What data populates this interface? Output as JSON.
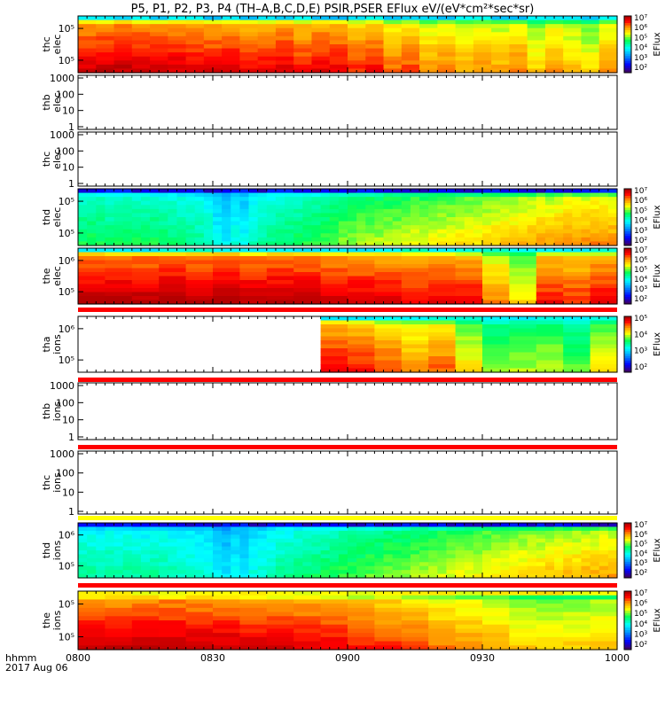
{
  "title": "P5, P1, P2, P3, P4 (TH–A,B,C,D,E) PSIR,PSER EFlux eV/(eV*cm²*sec*sr)",
  "footer": {
    "time_label": "hhmm",
    "date_label": "2017 Aug 06"
  },
  "colorbar_label": "EFlux",
  "chart_data": {
    "type": "heatmap",
    "x_ticks": [
      "0800",
      "0830",
      "0900",
      "0930",
      "1000"
    ],
    "x_range": [
      "0800",
      "1000"
    ],
    "panels": [
      {
        "id": "thc-elec",
        "ylabel": [
          "thc",
          "elec"
        ],
        "yticks": [
          "10⁵",
          "10⁵"
        ],
        "log_ticks": true,
        "has_data": true,
        "colorbar": [
          "10²",
          "10³",
          "10⁴",
          "10⁵",
          "10⁶",
          "10⁷"
        ],
        "bins": 30,
        "top_band": "cyan-blue",
        "level_profile": [
          0.95,
          0.96,
          0.97,
          0.96,
          0.95,
          0.95,
          0.94,
          0.93,
          0.95,
          0.92,
          0.93,
          0.94,
          0.9,
          0.93,
          0.92,
          0.88,
          0.9,
          0.84,
          0.86,
          0.8,
          0.82,
          0.78,
          0.8,
          0.78,
          0.82,
          0.74,
          0.8,
          0.76,
          0.72,
          0.8
        ]
      },
      {
        "id": "thb-elec",
        "ylabel": [
          "thb",
          "elec"
        ],
        "yticks": [
          "1000",
          "100",
          "10",
          "1"
        ],
        "log_ticks": false,
        "has_data": false
      },
      {
        "id": "thc-elec-2",
        "ylabel": [
          "thc",
          "elec"
        ],
        "yticks": [
          "1000",
          "100",
          "10",
          "1"
        ],
        "log_ticks": false,
        "has_data": false
      },
      {
        "id": "thd-elec",
        "ylabel": [
          "thd",
          "elec"
        ],
        "yticks": [
          "10⁵",
          "10⁵"
        ],
        "log_ticks": true,
        "has_data": true,
        "colorbar": [
          "10²",
          "10³",
          "10⁴",
          "10⁵",
          "10⁶",
          "10⁷"
        ],
        "bins": 60,
        "top_band": "spiky-purple",
        "level_profile": [
          0.55,
          0.56,
          0.55,
          0.54,
          0.55,
          0.56,
          0.55,
          0.54,
          0.55,
          0.54,
          0.53,
          0.52,
          0.52,
          0.5,
          0.48,
          0.42,
          0.4,
          0.44,
          0.42,
          0.48,
          0.5,
          0.52,
          0.53,
          0.54,
          0.55,
          0.56,
          0.57,
          0.58,
          0.6,
          0.62,
          0.63,
          0.64,
          0.64,
          0.65,
          0.66,
          0.66,
          0.67,
          0.68,
          0.68,
          0.69,
          0.7,
          0.7,
          0.71,
          0.72,
          0.72,
          0.73,
          0.74,
          0.75,
          0.75,
          0.76,
          0.77,
          0.78,
          0.78,
          0.79,
          0.8,
          0.8,
          0.8,
          0.81,
          0.8,
          0.8
        ]
      },
      {
        "id": "the-elec",
        "ylabel": [
          "the",
          "elec"
        ],
        "yticks": [
          "10⁶",
          "10⁵"
        ],
        "log_ticks": true,
        "has_data": true,
        "colorbar": [
          "10²",
          "10³",
          "10⁴",
          "10⁵",
          "10⁶",
          "10⁷"
        ],
        "bins": 20,
        "top_band": "cyan",
        "level_profile": [
          0.98,
          0.99,
          0.98,
          0.99,
          0.98,
          0.99,
          0.97,
          0.98,
          0.97,
          0.96,
          0.95,
          0.94,
          0.92,
          0.93,
          0.92,
          0.8,
          0.72,
          0.9,
          0.88,
          0.92
        ]
      },
      {
        "id": "tha-ions",
        "ylabel": [
          "tha",
          "ions"
        ],
        "yticks": [
          "10⁶",
          "10⁵"
        ],
        "log_ticks": true,
        "has_data": true,
        "colorbar": [
          "10²",
          "10³",
          "10⁴",
          "10⁵"
        ],
        "bins": 20,
        "data_start_bin": 9,
        "top_band": "cyan",
        "level_profile": [
          0,
          0,
          0,
          0,
          0,
          0,
          0,
          0,
          0,
          0.92,
          0.9,
          0.86,
          0.8,
          0.84,
          0.72,
          0.62,
          0.64,
          0.66,
          0.6,
          0.7
        ]
      },
      {
        "id": "thb-ions",
        "ylabel": [
          "thb",
          "ions"
        ],
        "yticks": [
          "1000",
          "100",
          "10",
          "1"
        ],
        "log_ticks": false,
        "has_data": false
      },
      {
        "id": "thc-ions",
        "ylabel": [
          "thc",
          "ions"
        ],
        "yticks": [
          "1000",
          "100",
          "10",
          "1"
        ],
        "log_ticks": false,
        "has_data": false
      },
      {
        "id": "thd-ions",
        "ylabel": [
          "thd",
          "ions"
        ],
        "yticks": [
          "10⁶",
          "10⁵"
        ],
        "log_ticks": true,
        "has_data": true,
        "colorbar": [
          "10²",
          "10³",
          "10⁴",
          "10⁵",
          "10⁶",
          "10⁷"
        ],
        "bins": 60,
        "top_band": "spiky-purple",
        "level_profile": [
          0.5,
          0.5,
          0.49,
          0.5,
          0.49,
          0.5,
          0.49,
          0.48,
          0.5,
          0.49,
          0.48,
          0.47,
          0.47,
          0.46,
          0.45,
          0.4,
          0.38,
          0.42,
          0.4,
          0.44,
          0.46,
          0.48,
          0.5,
          0.51,
          0.52,
          0.53,
          0.54,
          0.55,
          0.56,
          0.57,
          0.58,
          0.59,
          0.6,
          0.61,
          0.62,
          0.62,
          0.63,
          0.64,
          0.65,
          0.65,
          0.66,
          0.67,
          0.68,
          0.68,
          0.69,
          0.7,
          0.71,
          0.72,
          0.72,
          0.73,
          0.74,
          0.74,
          0.75,
          0.75,
          0.76,
          0.76,
          0.77,
          0.77,
          0.78,
          0.78
        ]
      },
      {
        "id": "the-ions",
        "ylabel": [
          "the",
          "ions"
        ],
        "yticks": [
          "10⁵",
          "10⁵"
        ],
        "log_ticks": true,
        "has_data": true,
        "colorbar": [
          "10²",
          "10³",
          "10⁴",
          "10⁵",
          "10⁶",
          "10⁷"
        ],
        "bins": 20,
        "top_band": "yellow",
        "level_profile": [
          0.97,
          0.96,
          0.97,
          0.97,
          0.96,
          0.96,
          0.95,
          0.94,
          0.93,
          0.92,
          0.9,
          0.88,
          0.86,
          0.82,
          0.8,
          0.78,
          0.74,
          0.72,
          0.74,
          0.76
        ]
      }
    ],
    "separator_bars": [
      {
        "after_panel": "the-elec",
        "color": "#ff0000"
      },
      {
        "after_panel": "tha-ions",
        "color": "#ff0000"
      },
      {
        "after_panel": "thb-ions",
        "color": "#ff0000"
      },
      {
        "after_panel": "thc-ions",
        "color": "#ffff00"
      },
      {
        "after_panel": "thd-ions",
        "color": "#ff0000"
      }
    ]
  }
}
